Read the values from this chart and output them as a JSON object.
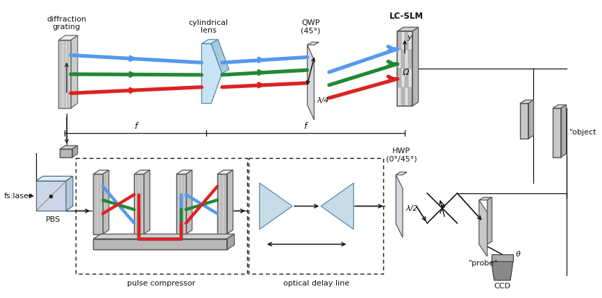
{
  "bg_color": "#ffffff",
  "beam_blue": "#5599ee",
  "beam_green": "#228833",
  "beam_red": "#dd2222",
  "lc": "#111111",
  "labels": {
    "diffraction_grating": "diffraction\ngrating",
    "cylindrical_lens": "cylindrical\nlens",
    "qwp": "QWP\n(45°)",
    "lc_slm": "LC-SLM",
    "hwp": "HWP\n(0°/45°)",
    "pulse_compressor": "pulse compressor",
    "optical_delay_line": "optical delay line",
    "pbs": "PBS",
    "fs_laser": "fs:laser",
    "probe": "\"probe\"",
    "object_str": "\"object",
    "ccd": "CCD",
    "f1": "f",
    "f2": "f",
    "lambda4": "λ/4",
    "lambda2": "λ/2",
    "y_label": "y",
    "omega": "Ω",
    "theta": "θ"
  },
  "figsize": [
    8.67,
    4.3
  ],
  "dpi": 100
}
